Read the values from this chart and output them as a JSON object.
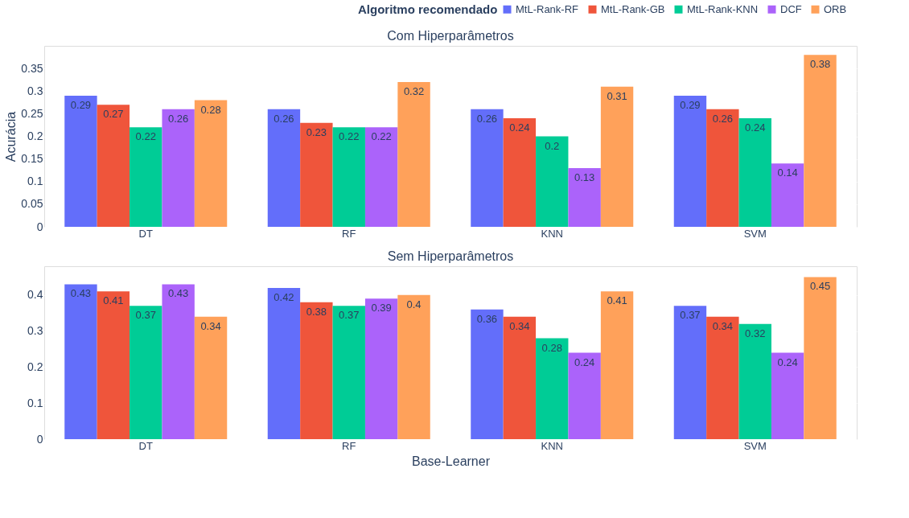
{
  "chart_data": [
    {
      "type": "bar",
      "title": "Com Hiperparâmetros",
      "ylabel": "Acurácia",
      "legend_title": "Algoritmo recomendado",
      "categories": [
        "DT",
        "RF",
        "KNN",
        "SVM"
      ],
      "series": [
        {
          "name": "MtL-Rank-RF",
          "color": "#636efa",
          "values": [
            0.29,
            0.26,
            0.26,
            0.29
          ]
        },
        {
          "name": "MtL-Rank-GB",
          "color": "#ef553b",
          "values": [
            0.27,
            0.23,
            0.24,
            0.26
          ]
        },
        {
          "name": "MtL-Rank-KNN",
          "color": "#00cc96",
          "values": [
            0.22,
            0.22,
            0.2,
            0.24
          ]
        },
        {
          "name": "DCF",
          "color": "#ab63fa",
          "values": [
            0.26,
            0.22,
            0.13,
            0.14
          ]
        },
        {
          "name": "ORB",
          "color": "#ffa15a",
          "values": [
            0.28,
            0.32,
            0.31,
            0.38
          ]
        }
      ],
      "ylim": [
        0,
        0.4
      ],
      "yticks": [
        0,
        0.05,
        0.1,
        0.15,
        0.2,
        0.25,
        0.3,
        0.35
      ],
      "grid": "y",
      "legend": "top right",
      "data_labels": true
    },
    {
      "type": "bar",
      "title": "Sem Hiperparâmetros",
      "xlabel": "Base-Learner",
      "categories": [
        "DT",
        "RF",
        "KNN",
        "SVM"
      ],
      "series": [
        {
          "name": "MtL-Rank-RF",
          "color": "#636efa",
          "values": [
            0.43,
            0.42,
            0.36,
            0.37
          ]
        },
        {
          "name": "MtL-Rank-GB",
          "color": "#ef553b",
          "values": [
            0.41,
            0.38,
            0.34,
            0.34
          ]
        },
        {
          "name": "MtL-Rank-KNN",
          "color": "#00cc96",
          "values": [
            0.37,
            0.37,
            0.28,
            0.32
          ]
        },
        {
          "name": "DCF",
          "color": "#ab63fa",
          "values": [
            0.43,
            0.39,
            0.24,
            0.24
          ]
        },
        {
          "name": "ORB",
          "color": "#ffa15a",
          "values": [
            0.34,
            0.4,
            0.41,
            0.45
          ]
        }
      ],
      "ylim": [
        0,
        0.48
      ],
      "yticks": [
        0,
        0.1,
        0.2,
        0.3,
        0.4
      ],
      "grid": "y",
      "data_labels": true
    }
  ]
}
